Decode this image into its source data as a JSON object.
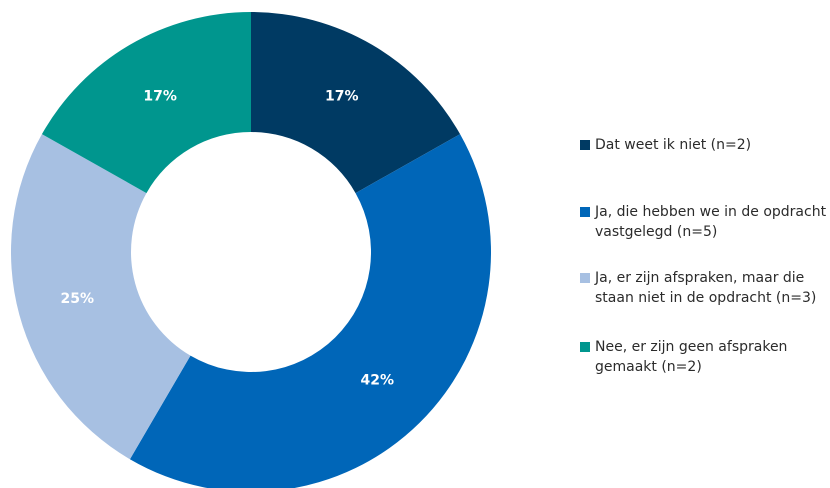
{
  "chart_data": {
    "type": "pie",
    "variant": "donut",
    "title": "",
    "categories": [
      "Dat weet ik niet (n=2)",
      "Ja, die hebben we in de opdracht vastgelegd (n=5)",
      "Ja, er zijn afspraken, maar die staan niet in de opdracht (n=3)",
      "Nee, er zijn geen afspraken gemaakt (n=2)"
    ],
    "values": [
      17,
      42,
      25,
      17
    ],
    "value_labels": [
      "17%",
      "42%",
      "25%",
      "17%"
    ],
    "colors": [
      "#003A63",
      "#0066B8",
      "#A7C0E2",
      "#00968E"
    ],
    "legend_position": "right"
  }
}
